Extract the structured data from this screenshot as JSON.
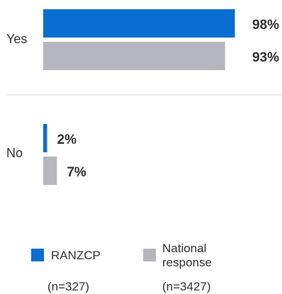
{
  "colors": {
    "ranzcp": "#0A6ED1",
    "national": "#B6B6BE",
    "divider": "#D9D9D9"
  },
  "chart_data": {
    "type": "bar",
    "orientation": "horizontal",
    "categories": [
      "Yes",
      "No"
    ],
    "series": [
      {
        "name": "RANZCP",
        "values": [
          98,
          2
        ],
        "labels": [
          "98%",
          "2%"
        ]
      },
      {
        "name": "National response",
        "values": [
          93,
          7
        ],
        "labels": [
          "93%",
          "7%"
        ]
      }
    ],
    "xlim": [
      0,
      100
    ],
    "grid": false,
    "legend_position": "bottom"
  },
  "legend": {
    "ranzcp_label": "RANZCP",
    "national_label_line1": "National",
    "national_label_line2": "response",
    "ranzcp_n": "(n=327)",
    "national_n": "(n=3427)"
  }
}
